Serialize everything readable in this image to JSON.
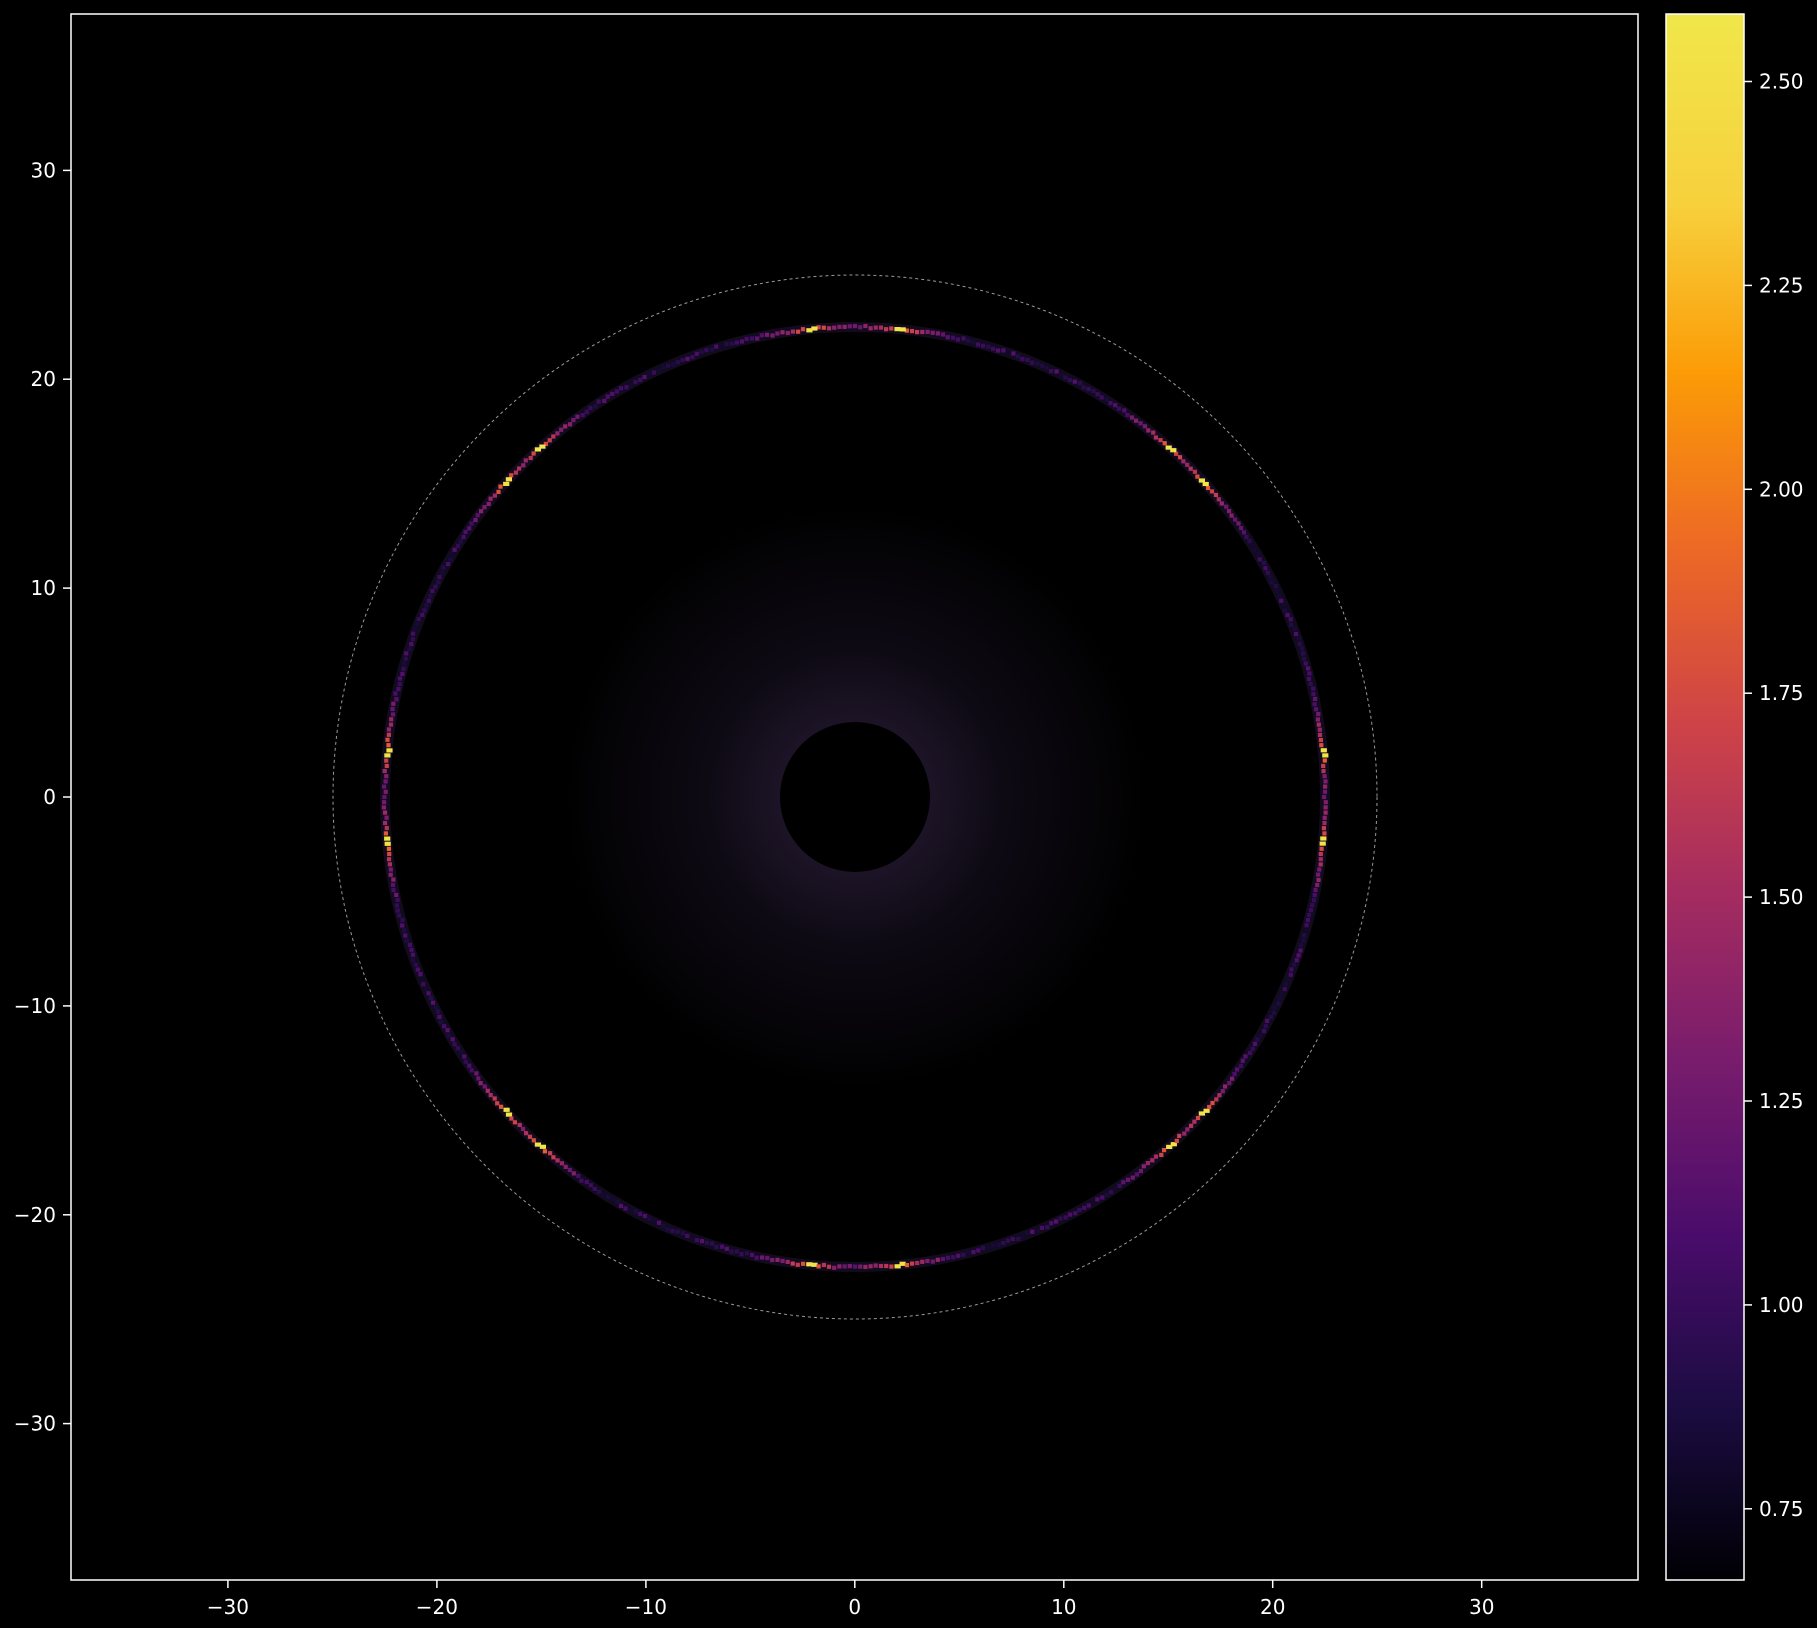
{
  "chart_data": {
    "type": "heatmap",
    "title": "",
    "xlabel": "",
    "ylabel": "",
    "xlim": [
      -37.5,
      37.5
    ],
    "ylim": [
      -37.5,
      37.5
    ],
    "x_ticks": [
      -30,
      -20,
      -10,
      0,
      10,
      20,
      30
    ],
    "y_ticks": [
      30,
      20,
      10,
      0,
      -10,
      -20,
      -30
    ],
    "x_tick_labels": [
      "−30",
      "−20",
      "−10",
      "0",
      "10",
      "20",
      "30"
    ],
    "y_tick_labels": [
      "30",
      "20",
      "10",
      "0",
      "−10",
      "−20",
      "−30"
    ],
    "grid": false,
    "colormap": "inferno",
    "background": "#000000",
    "colorbar": {
      "vmin": 0.66,
      "vmax": 2.58,
      "ticks": [
        0.75,
        1.0,
        1.25,
        1.5,
        1.75,
        2.0,
        2.25,
        2.5
      ],
      "tick_labels": [
        "0.75",
        "1.00",
        "1.25",
        "1.50",
        "1.75",
        "2.00",
        "2.25",
        "2.50"
      ],
      "colors": [
        "#000004",
        "#1b0c41",
        "#4a0c6b",
        "#781c6d",
        "#a52c60",
        "#cf4446",
        "#ed6925",
        "#fb9b06",
        "#f7d13d",
        "#f0e64a"
      ]
    },
    "features": {
      "dashed_circle_radius": 25,
      "bright_ring_radius": 22.5,
      "central_dark_disk_radius": 3.6,
      "diffuse_halo_inner_radius": 3.6,
      "diffuse_halo_outer_radius": 14,
      "ring_hotspot_angles_deg": [
        5.5,
        -5.5,
        48,
        42,
        84.5,
        95.5,
        132,
        138,
        174.5,
        185.5,
        222,
        228,
        264.5,
        275.5,
        312,
        318
      ],
      "ring_value_range": [
        0.7,
        2.58
      ]
    }
  }
}
